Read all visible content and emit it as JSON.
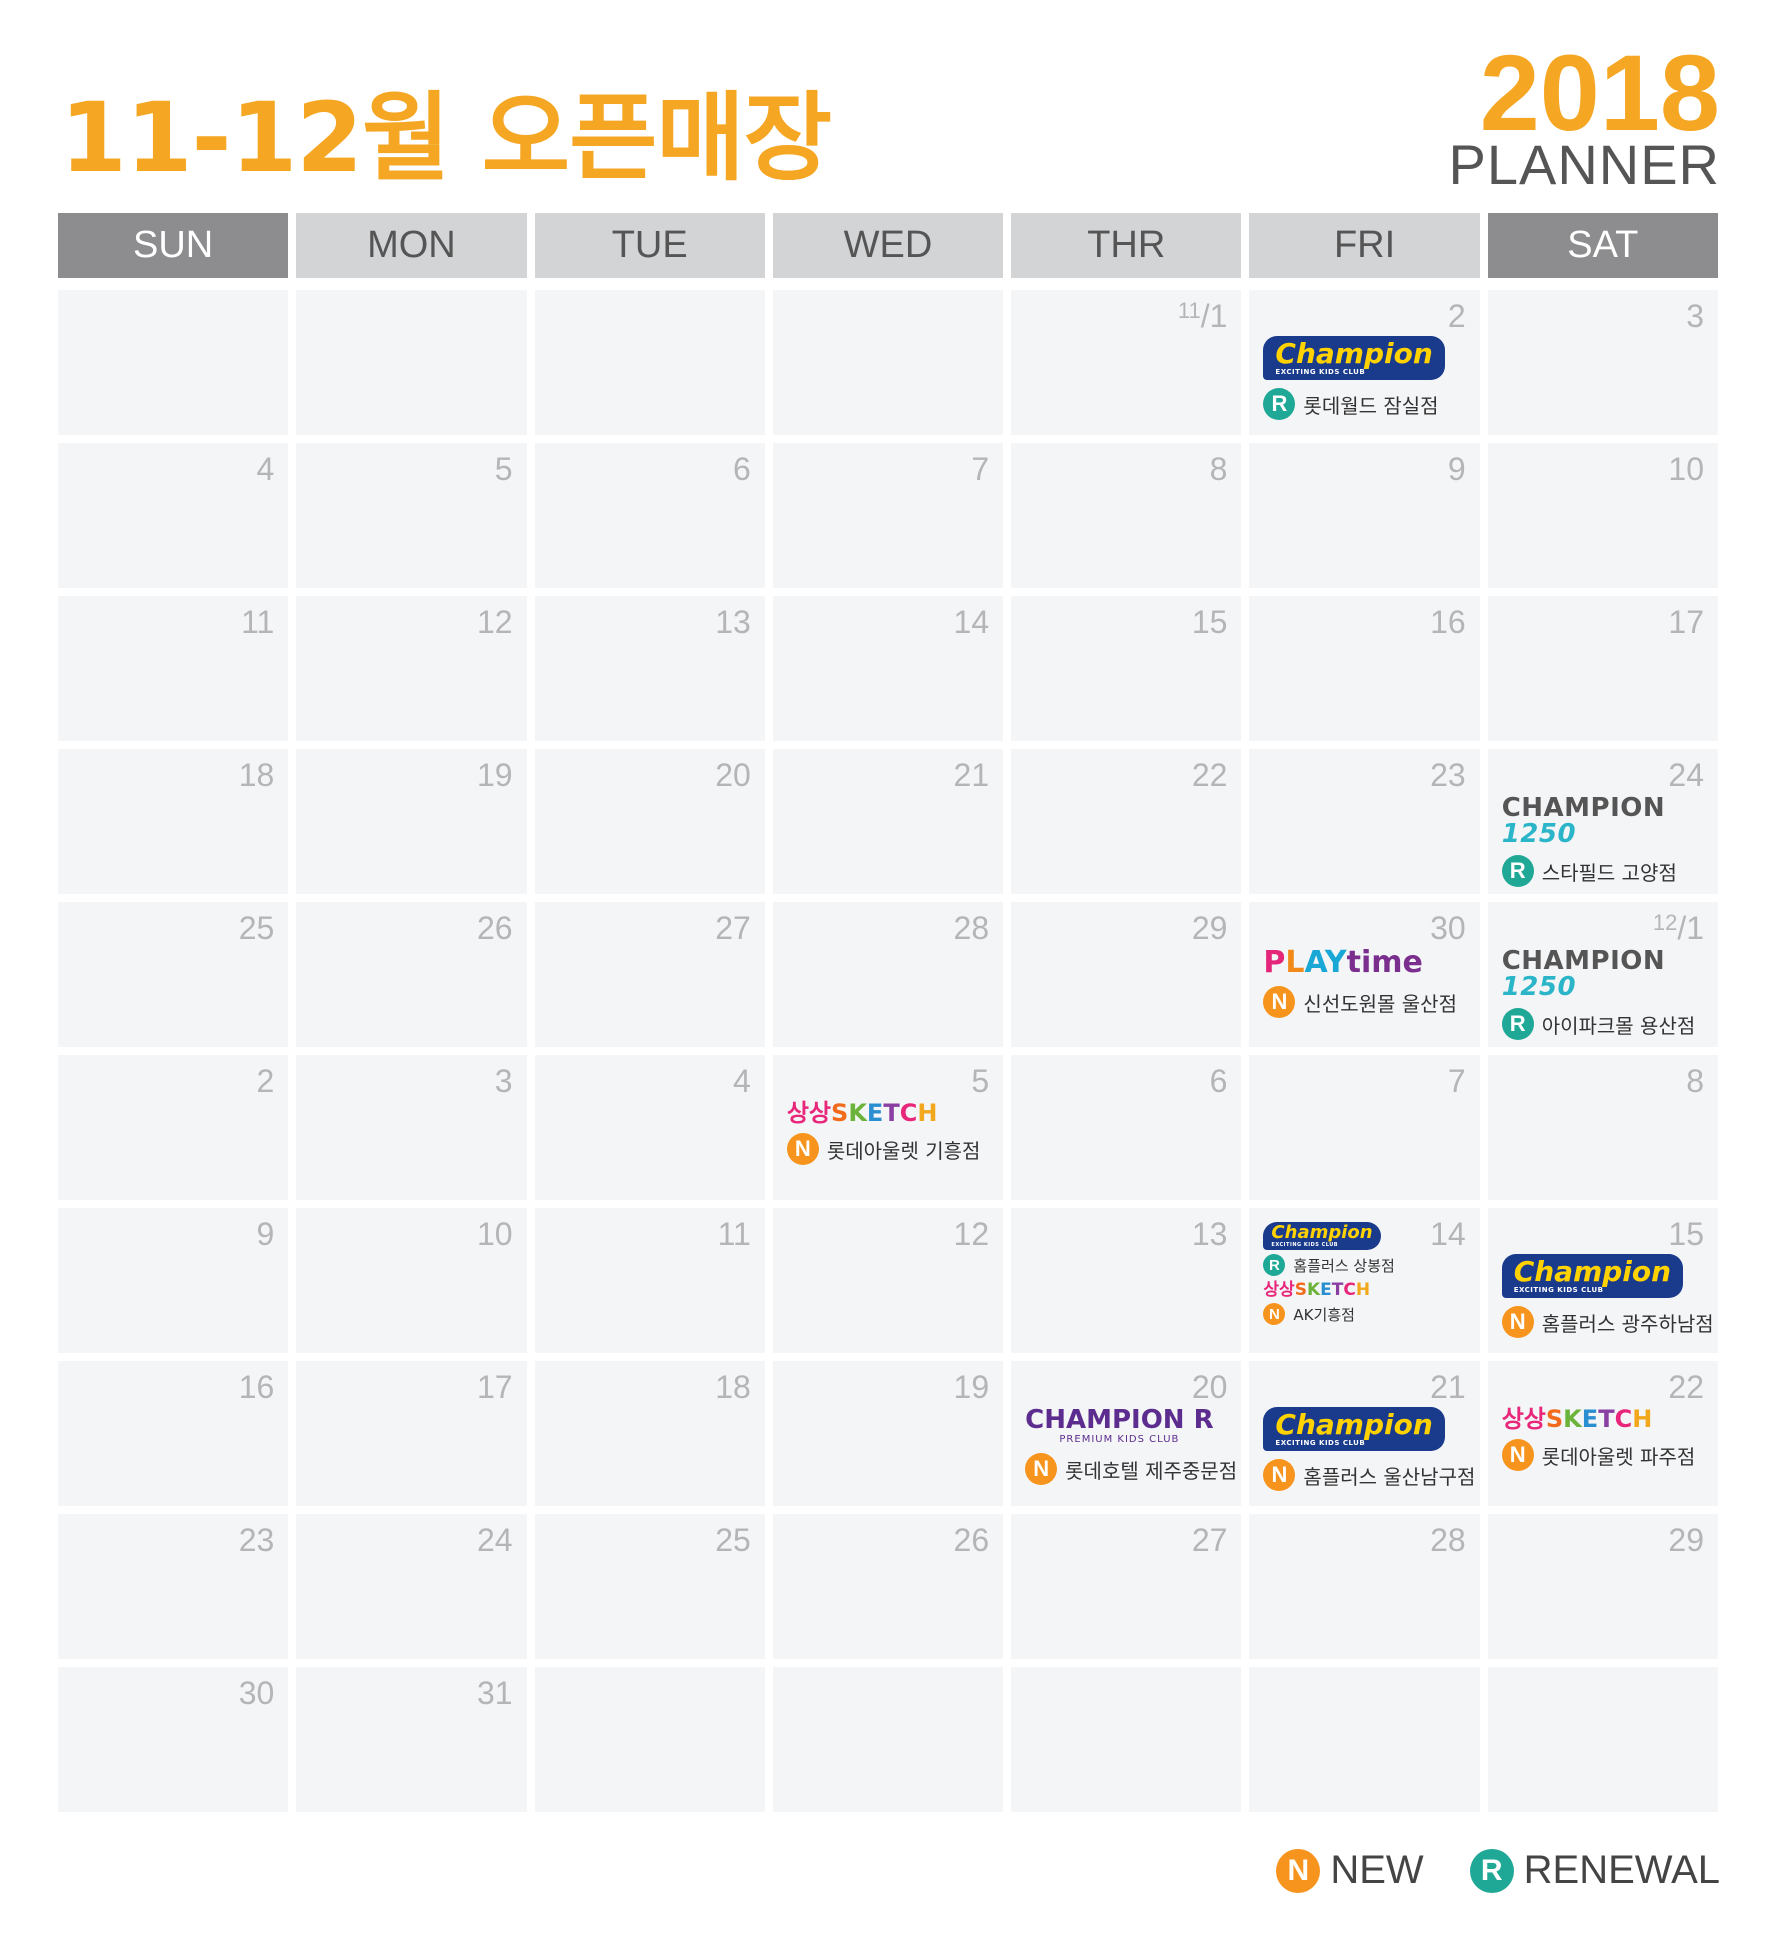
{
  "title": "11-12월 오픈매장",
  "year": "2018",
  "planner": "PLANNER",
  "days": [
    "SUN",
    "MON",
    "TUE",
    "WED",
    "THR",
    "FRI",
    "SAT"
  ],
  "colors": {
    "accent": "#f5a623",
    "new": "#f7941d",
    "renewal": "#1fa896"
  },
  "legend": {
    "n_badge": "N",
    "new": "NEW",
    "r_badge": "R",
    "renewal": "RENEWAL"
  },
  "brands": {
    "champion": "Champion",
    "champion_sub": "EXCITING KIDS CLUB",
    "champion1250_a": "CHAMPION",
    "champion1250_b": "1250",
    "playtime_a": "P",
    "playtime_b": "L",
    "playtime_c": "AY",
    "playtime_d": "time",
    "sketch_a": "상상",
    "sketch_b": "S",
    "sketch_c": "K",
    "sketch_d": "E",
    "sketch_e": "T",
    "sketch_f": "C",
    "sketch_g": "H",
    "premium": "CHAMPION R",
    "premium_sub": "PREMIUM KIDS CLUB"
  },
  "cells": [
    "",
    "",
    "",
    "",
    "11/1",
    "2",
    "3",
    "4",
    "5",
    "6",
    "7",
    "8",
    "9",
    "10",
    "11",
    "12",
    "13",
    "14",
    "15",
    "16",
    "17",
    "18",
    "19",
    "20",
    "21",
    "22",
    "23",
    "24",
    "25",
    "26",
    "27",
    "28",
    "29",
    "30",
    "12/1",
    "2",
    "3",
    "4",
    "5",
    "6",
    "7",
    "8",
    "9",
    "10",
    "11",
    "12",
    "13",
    "14",
    "15",
    "16",
    "17",
    "18",
    "19",
    "20",
    "21",
    "22",
    "23",
    "24",
    "25",
    "26",
    "27",
    "28",
    "29",
    "30",
    "31",
    "",
    "",
    "",
    "",
    ""
  ],
  "events": {
    "nov2": {
      "badge": "R",
      "store": "롯데월드 잠실점"
    },
    "nov24": {
      "badge": "R",
      "store": "스타필드 고양점"
    },
    "nov30": {
      "badge": "N",
      "store": "신선도원몰 울산점"
    },
    "dec1": {
      "badge": "R",
      "store": "아이파크몰 용산점"
    },
    "dec5": {
      "badge": "N",
      "store": "롯데아울렛 기흥점"
    },
    "dec14_a": {
      "badge": "R",
      "store": "홈플러스 상봉점"
    },
    "dec14_b": {
      "badge": "N",
      "store": "AK기흥점"
    },
    "dec15": {
      "badge": "N",
      "store": "홈플러스 광주하남점"
    },
    "dec20": {
      "badge": "N",
      "store": "롯데호텔 제주중문점"
    },
    "dec21": {
      "badge": "N",
      "store": "홈플러스 울산남구점"
    },
    "dec22": {
      "badge": "N",
      "store": "롯데아울렛 파주점"
    }
  }
}
